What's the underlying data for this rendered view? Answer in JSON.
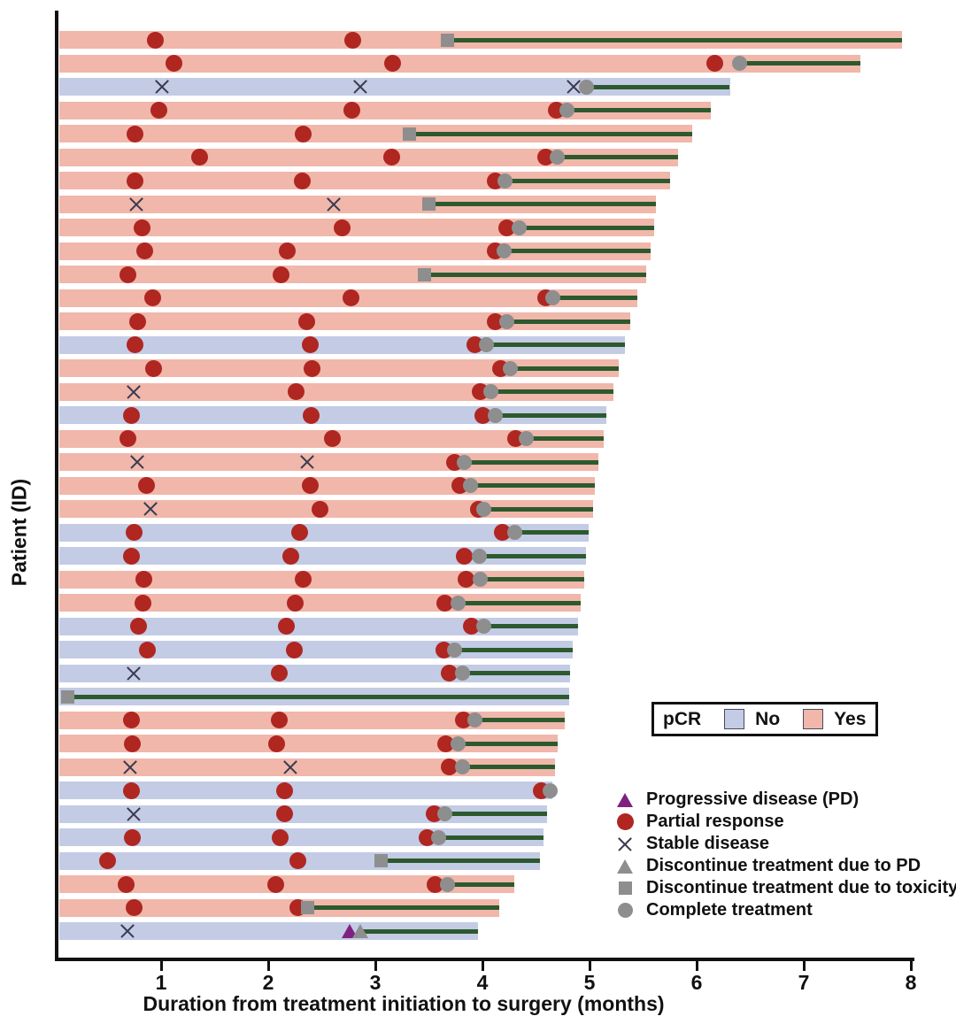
{
  "figure": {
    "y_axis_label": "Patient (ID)",
    "x_axis_label": "Duration from treatment initiation to surgery (months)",
    "pcr_legend": {
      "title": "pCR",
      "no_label": "No",
      "yes_label": "Yes"
    },
    "marker_legend": [
      {
        "type": "pd",
        "label": "Progressive disease (PD)"
      },
      {
        "type": "pr",
        "label": "Partial response"
      },
      {
        "type": "sd",
        "label": "Stable disease"
      },
      {
        "type": "disc_pd",
        "label": "Discontinue treatment due to PD"
      },
      {
        "type": "disc_tox",
        "label": "Discontinue treatment due to toxicity"
      },
      {
        "type": "complete",
        "label": "Complete treatment"
      }
    ],
    "colors": {
      "pcr_yes": "#f0b7aa",
      "pcr_no": "#c3cbe5",
      "treatment_line": "#2c5a2e",
      "partial_response": "#b02620",
      "progressive_disease": "#7e2183",
      "discontinue_gray": "#8e8e8e",
      "stable_disease_x": "#3a3a50",
      "axis": "#111111"
    }
  },
  "chart_data": {
    "type": "swimmer",
    "xlabel": "Duration from treatment initiation to surgery (months)",
    "ylabel": "Patient (ID)",
    "xlim": [
      0,
      8
    ],
    "x_ticks": [
      1,
      2,
      3,
      4,
      5,
      6,
      7,
      8
    ],
    "grid": false,
    "legend_position": "lower-right",
    "marker_types": {
      "pd": "Progressive disease (PD)",
      "pr": "Partial response",
      "sd": "Stable disease",
      "disc_pd": "Discontinue treatment due to PD",
      "disc_tox": "Discontinue treatment due to toxicity",
      "complete": "Complete treatment"
    },
    "patients": [
      {
        "pcr": "Yes",
        "end": 7.92,
        "line_start": 3.67,
        "markers": [
          {
            "t": "pr",
            "m": 0.95
          },
          {
            "t": "pr",
            "m": 2.79
          },
          {
            "t": "disc_tox",
            "m": 3.67
          }
        ]
      },
      {
        "pcr": "Yes",
        "end": 7.53,
        "line_start": 6.4,
        "markers": [
          {
            "t": "pr",
            "m": 1.12
          },
          {
            "t": "pr",
            "m": 3.16
          },
          {
            "t": "pr",
            "m": 6.17
          },
          {
            "t": "complete",
            "m": 6.4
          }
        ]
      },
      {
        "pcr": "No",
        "end": 6.31,
        "line_start": 4.97,
        "markers": [
          {
            "t": "sd",
            "m": 1.01
          },
          {
            "t": "sd",
            "m": 2.86
          },
          {
            "t": "sd",
            "m": 4.85
          },
          {
            "t": "complete",
            "m": 4.97
          }
        ]
      },
      {
        "pcr": "Yes",
        "end": 6.13,
        "line_start": 4.79,
        "markers": [
          {
            "t": "pr",
            "m": 0.98
          },
          {
            "t": "pr",
            "m": 2.78
          },
          {
            "t": "pr",
            "m": 4.69
          },
          {
            "t": "complete",
            "m": 4.79
          }
        ]
      },
      {
        "pcr": "Yes",
        "end": 5.96,
        "line_start": 3.32,
        "markers": [
          {
            "t": "pr",
            "m": 0.76
          },
          {
            "t": "pr",
            "m": 2.33
          },
          {
            "t": "disc_tox",
            "m": 3.32
          }
        ]
      },
      {
        "pcr": "Yes",
        "end": 5.83,
        "line_start": 4.7,
        "markers": [
          {
            "t": "pr",
            "m": 1.36
          },
          {
            "t": "pr",
            "m": 3.15
          },
          {
            "t": "pr",
            "m": 4.59
          },
          {
            "t": "complete",
            "m": 4.7
          }
        ]
      },
      {
        "pcr": "Yes",
        "end": 5.75,
        "line_start": 4.21,
        "markers": [
          {
            "t": "pr",
            "m": 0.76
          },
          {
            "t": "pr",
            "m": 2.32
          },
          {
            "t": "pr",
            "m": 4.12
          },
          {
            "t": "complete",
            "m": 4.21
          }
        ]
      },
      {
        "pcr": "Yes",
        "end": 5.62,
        "line_start": 3.5,
        "markers": [
          {
            "t": "sd",
            "m": 0.77
          },
          {
            "t": "sd",
            "m": 2.61
          },
          {
            "t": "disc_tox",
            "m": 3.5
          }
        ]
      },
      {
        "pcr": "Yes",
        "end": 5.6,
        "line_start": 4.34,
        "markers": [
          {
            "t": "pr",
            "m": 0.82
          },
          {
            "t": "pr",
            "m": 2.69
          },
          {
            "t": "pr",
            "m": 4.23
          },
          {
            "t": "complete",
            "m": 4.34
          }
        ]
      },
      {
        "pcr": "Yes",
        "end": 5.57,
        "line_start": 4.2,
        "markers": [
          {
            "t": "pr",
            "m": 0.85
          },
          {
            "t": "pr",
            "m": 2.18
          },
          {
            "t": "pr",
            "m": 4.12
          },
          {
            "t": "complete",
            "m": 4.2
          }
        ]
      },
      {
        "pcr": "Yes",
        "end": 5.53,
        "line_start": 3.46,
        "markers": [
          {
            "t": "pr",
            "m": 0.69
          },
          {
            "t": "pr",
            "m": 2.12
          },
          {
            "t": "disc_tox",
            "m": 3.46
          }
        ]
      },
      {
        "pcr": "Yes",
        "end": 5.45,
        "line_start": 4.66,
        "markers": [
          {
            "t": "pr",
            "m": 0.92
          },
          {
            "t": "pr",
            "m": 2.77
          },
          {
            "t": "pr",
            "m": 4.59
          },
          {
            "t": "complete",
            "m": 4.66
          }
        ]
      },
      {
        "pcr": "Yes",
        "end": 5.38,
        "line_start": 4.23,
        "markers": [
          {
            "t": "pr",
            "m": 0.78
          },
          {
            "t": "pr",
            "m": 2.36
          },
          {
            "t": "pr",
            "m": 4.12
          },
          {
            "t": "complete",
            "m": 4.23
          }
        ]
      },
      {
        "pcr": "No",
        "end": 5.33,
        "line_start": 4.04,
        "markers": [
          {
            "t": "pr",
            "m": 0.76
          },
          {
            "t": "pr",
            "m": 2.39
          },
          {
            "t": "pr",
            "m": 3.93
          },
          {
            "t": "complete",
            "m": 4.04
          }
        ]
      },
      {
        "pcr": "Yes",
        "end": 5.27,
        "line_start": 4.26,
        "markers": [
          {
            "t": "pr",
            "m": 0.93
          },
          {
            "t": "pr",
            "m": 2.41
          },
          {
            "t": "pr",
            "m": 4.17
          },
          {
            "t": "complete",
            "m": 4.26
          }
        ]
      },
      {
        "pcr": "Yes",
        "end": 5.22,
        "line_start": 4.08,
        "markers": [
          {
            "t": "sd",
            "m": 0.74
          },
          {
            "t": "pr",
            "m": 2.26
          },
          {
            "t": "pr",
            "m": 3.98
          },
          {
            "t": "complete",
            "m": 4.08
          }
        ]
      },
      {
        "pcr": "No",
        "end": 5.16,
        "line_start": 4.12,
        "markers": [
          {
            "t": "pr",
            "m": 0.72
          },
          {
            "t": "pr",
            "m": 2.4
          },
          {
            "t": "pr",
            "m": 4.0
          },
          {
            "t": "complete",
            "m": 4.12
          }
        ]
      },
      {
        "pcr": "Yes",
        "end": 5.13,
        "line_start": 4.41,
        "markers": [
          {
            "t": "pr",
            "m": 0.69
          },
          {
            "t": "pr",
            "m": 2.6
          },
          {
            "t": "pr",
            "m": 4.31
          },
          {
            "t": "complete",
            "m": 4.41
          }
        ]
      },
      {
        "pcr": "Yes",
        "end": 5.08,
        "line_start": 3.83,
        "markers": [
          {
            "t": "sd",
            "m": 0.78
          },
          {
            "t": "sd",
            "m": 2.36
          },
          {
            "t": "pr",
            "m": 3.74
          },
          {
            "t": "complete",
            "m": 3.83
          }
        ]
      },
      {
        "pcr": "Yes",
        "end": 5.05,
        "line_start": 3.89,
        "markers": [
          {
            "t": "pr",
            "m": 0.86
          },
          {
            "t": "pr",
            "m": 2.39
          },
          {
            "t": "pr",
            "m": 3.79
          },
          {
            "t": "complete",
            "m": 3.89
          }
        ]
      },
      {
        "pcr": "Yes",
        "end": 5.03,
        "line_start": 4.01,
        "markers": [
          {
            "t": "sd",
            "m": 0.9
          },
          {
            "t": "pr",
            "m": 2.48
          },
          {
            "t": "pr",
            "m": 3.96
          },
          {
            "t": "complete",
            "m": 4.01
          }
        ]
      },
      {
        "pcr": "No",
        "end": 4.99,
        "line_start": 4.3,
        "markers": [
          {
            "t": "pr",
            "m": 0.75
          },
          {
            "t": "pr",
            "m": 2.29
          },
          {
            "t": "pr",
            "m": 4.19
          },
          {
            "t": "complete",
            "m": 4.3
          }
        ]
      },
      {
        "pcr": "No",
        "end": 4.97,
        "line_start": 3.97,
        "markers": [
          {
            "t": "pr",
            "m": 0.72
          },
          {
            "t": "pr",
            "m": 2.21
          },
          {
            "t": "pr",
            "m": 3.83
          },
          {
            "t": "complete",
            "m": 3.97
          }
        ]
      },
      {
        "pcr": "Yes",
        "end": 4.95,
        "line_start": 3.98,
        "markers": [
          {
            "t": "pr",
            "m": 0.84
          },
          {
            "t": "pr",
            "m": 2.33
          },
          {
            "t": "pr",
            "m": 3.85
          },
          {
            "t": "complete",
            "m": 3.98
          }
        ]
      },
      {
        "pcr": "Yes",
        "end": 4.92,
        "line_start": 3.77,
        "markers": [
          {
            "t": "pr",
            "m": 0.83
          },
          {
            "t": "pr",
            "m": 2.25
          },
          {
            "t": "pr",
            "m": 3.65
          },
          {
            "t": "complete",
            "m": 3.77
          }
        ]
      },
      {
        "pcr": "No",
        "end": 4.89,
        "line_start": 4.01,
        "markers": [
          {
            "t": "pr",
            "m": 0.79
          },
          {
            "t": "pr",
            "m": 2.17
          },
          {
            "t": "pr",
            "m": 3.9
          },
          {
            "t": "complete",
            "m": 4.01
          }
        ]
      },
      {
        "pcr": "No",
        "end": 4.84,
        "line_start": 3.74,
        "markers": [
          {
            "t": "pr",
            "m": 0.87
          },
          {
            "t": "pr",
            "m": 2.24
          },
          {
            "t": "pr",
            "m": 3.64
          },
          {
            "t": "complete",
            "m": 3.74
          }
        ]
      },
      {
        "pcr": "No",
        "end": 4.82,
        "line_start": 3.81,
        "markers": [
          {
            "t": "sd",
            "m": 0.74
          },
          {
            "t": "pr",
            "m": 2.1
          },
          {
            "t": "pr",
            "m": 3.69
          },
          {
            "t": "complete",
            "m": 3.81
          }
        ]
      },
      {
        "pcr": "No",
        "end": 4.81,
        "line_start": 0.13,
        "markers": [
          {
            "t": "disc_tox",
            "m": 0.13
          }
        ]
      },
      {
        "pcr": "Yes",
        "end": 4.77,
        "line_start": 3.93,
        "markers": [
          {
            "t": "pr",
            "m": 0.72
          },
          {
            "t": "pr",
            "m": 2.1
          },
          {
            "t": "pr",
            "m": 3.82
          },
          {
            "t": "complete",
            "m": 3.93
          }
        ]
      },
      {
        "pcr": "Yes",
        "end": 4.7,
        "line_start": 3.77,
        "markers": [
          {
            "t": "pr",
            "m": 0.73
          },
          {
            "t": "pr",
            "m": 2.08
          },
          {
            "t": "pr",
            "m": 3.66
          },
          {
            "t": "complete",
            "m": 3.77
          }
        ]
      },
      {
        "pcr": "Yes",
        "end": 4.68,
        "line_start": 3.81,
        "markers": [
          {
            "t": "sd",
            "m": 0.71
          },
          {
            "t": "sd",
            "m": 2.21
          },
          {
            "t": "pr",
            "m": 3.69
          },
          {
            "t": "complete",
            "m": 3.81
          }
        ]
      },
      {
        "pcr": "No",
        "end": 4.65,
        "line_start": 4.63,
        "markers": [
          {
            "t": "pr",
            "m": 0.72
          },
          {
            "t": "pr",
            "m": 2.15
          },
          {
            "t": "pr",
            "m": 4.55
          },
          {
            "t": "complete",
            "m": 4.63
          }
        ]
      },
      {
        "pcr": "No",
        "end": 4.6,
        "line_start": 3.65,
        "markers": [
          {
            "t": "sd",
            "m": 0.74
          },
          {
            "t": "pr",
            "m": 2.15
          },
          {
            "t": "pr",
            "m": 3.55
          },
          {
            "t": "complete",
            "m": 3.65
          }
        ]
      },
      {
        "pcr": "No",
        "end": 4.57,
        "line_start": 3.59,
        "markers": [
          {
            "t": "pr",
            "m": 0.73
          },
          {
            "t": "pr",
            "m": 2.11
          },
          {
            "t": "pr",
            "m": 3.48
          },
          {
            "t": "complete",
            "m": 3.59
          }
        ]
      },
      {
        "pcr": "No",
        "end": 4.54,
        "line_start": 3.05,
        "markers": [
          {
            "t": "pr",
            "m": 0.5
          },
          {
            "t": "pr",
            "m": 2.28
          },
          {
            "t": "disc_tox",
            "m": 3.05
          }
        ]
      },
      {
        "pcr": "Yes",
        "end": 4.3,
        "line_start": 3.67,
        "markers": [
          {
            "t": "pr",
            "m": 0.67
          },
          {
            "t": "pr",
            "m": 2.07
          },
          {
            "t": "pr",
            "m": 3.56
          },
          {
            "t": "complete",
            "m": 3.67
          }
        ]
      },
      {
        "pcr": "Yes",
        "end": 4.16,
        "line_start": 2.37,
        "markers": [
          {
            "t": "pr",
            "m": 0.75
          },
          {
            "t": "pr",
            "m": 2.28
          },
          {
            "t": "disc_tox",
            "m": 2.37
          }
        ]
      },
      {
        "pcr": "No",
        "end": 3.96,
        "line_start": 2.86,
        "markers": [
          {
            "t": "sd",
            "m": 0.69
          },
          {
            "t": "pd",
            "m": 2.76
          },
          {
            "t": "disc_pd",
            "m": 2.86
          }
        ]
      }
    ]
  }
}
